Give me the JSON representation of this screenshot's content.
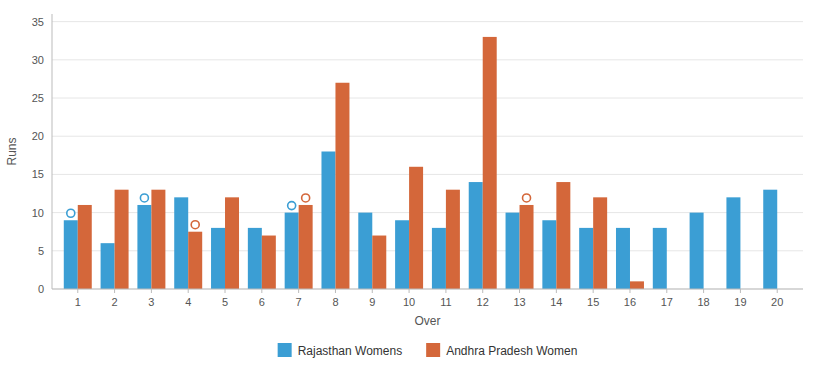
{
  "chart_data": {
    "type": "bar",
    "x": [
      1,
      2,
      3,
      4,
      5,
      6,
      7,
      8,
      9,
      10,
      11,
      12,
      13,
      14,
      15,
      16,
      17,
      18,
      19,
      20
    ],
    "xlabel": "Over",
    "ylabel": "Runs",
    "series": [
      {
        "name": "Rajasthan Womens",
        "color": "#3b9ed4",
        "values": [
          9,
          6,
          11,
          12,
          8,
          8,
          10,
          18,
          10,
          9,
          8,
          14,
          10,
          9,
          8,
          8,
          8,
          10,
          12,
          13
        ],
        "wickets": [
          1,
          3,
          7
        ]
      },
      {
        "name": "Andhra Pradesh Women",
        "color": "#d4673a",
        "values": [
          11,
          13,
          13,
          7.5,
          12,
          7,
          11,
          27,
          7,
          16,
          13,
          33,
          11,
          14,
          12,
          1,
          0,
          0,
          0,
          0
        ],
        "wickets": [
          4,
          7,
          13
        ]
      }
    ],
    "xlim": [
      0.3,
      20.7
    ],
    "xticks": [
      1,
      2,
      3,
      4,
      5,
      6,
      7,
      8,
      9,
      10,
      11,
      12,
      13,
      14,
      15,
      16,
      17,
      18,
      19,
      20
    ],
    "ylim": [
      0,
      36
    ],
    "yticks": [
      0,
      5,
      10,
      15,
      20,
      25,
      30,
      35
    ],
    "grid": true,
    "legend": "bottom"
  }
}
